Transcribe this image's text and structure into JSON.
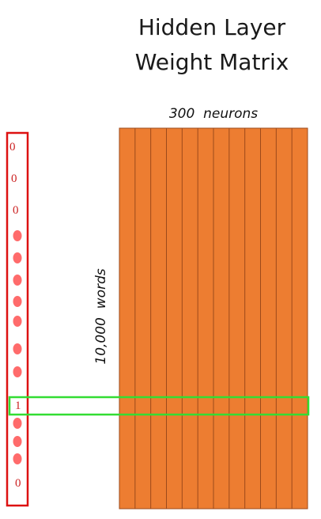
{
  "title": {
    "line1": "Hidden Layer",
    "line2": "Weight Matrix"
  },
  "matrix": {
    "cols_label": "300  neurons",
    "rows_label": "10,000  words",
    "fill_color": "#ed7d31",
    "line_color": "#9c4a1b",
    "column_count": 12
  },
  "one_hot": {
    "top_zeros": [
      "0",
      "0",
      "0"
    ],
    "hot_value": "1",
    "bottom_zero": "0",
    "vector_color": "#dd1111",
    "dot_color": "#ff6b6b"
  },
  "highlight_color": "#33dd33"
}
